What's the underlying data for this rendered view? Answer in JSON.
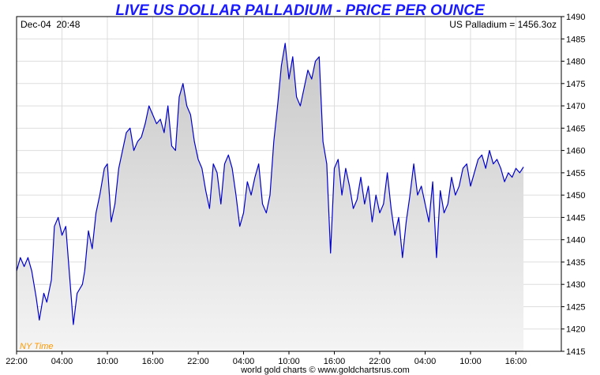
{
  "chart_data": {
    "type": "area",
    "title": "LIVE US DOLLAR PALLADIUM - PRICE PER OUNCE",
    "date_time": "Dec-04  20:48",
    "current_price_label": "US Palladium = 1456.3oz",
    "timezone_label": "NY Time",
    "footer": "world gold charts © www.goldchartsrus.com",
    "ylim": [
      1415,
      1490
    ],
    "y_axis_side": "right",
    "y_ticks": [
      1415,
      1420,
      1425,
      1430,
      1435,
      1440,
      1445,
      1450,
      1455,
      1460,
      1465,
      1470,
      1475,
      1480,
      1485,
      1490
    ],
    "x_ticks": [
      "22:00",
      "04:00",
      "10:00",
      "16:00",
      "22:00",
      "04:00",
      "10:00",
      "16:00",
      "22:00",
      "04:00",
      "10:00",
      "16:00"
    ],
    "x_tick_hours": [
      0,
      6,
      12,
      18,
      24,
      30,
      36,
      42,
      48,
      54,
      60,
      66
    ],
    "xlim_hours": [
      0,
      72
    ],
    "grid": true,
    "colors": {
      "line": "#0000cc",
      "fill_top": "#c8c8c8",
      "fill_bottom": "#f4f4f4",
      "grid": "#dddddd",
      "title": "#1a1aff",
      "timezone": "#ff9900"
    },
    "series": [
      {
        "values_hourly_approx": [
          [
            0,
            1433
          ],
          [
            0.5,
            1436
          ],
          [
            1,
            1434
          ],
          [
            1.5,
            1436
          ],
          [
            2,
            1433
          ],
          [
            2.6,
            1427
          ],
          [
            3,
            1422
          ],
          [
            3.6,
            1428
          ],
          [
            4,
            1426
          ],
          [
            4.6,
            1431
          ],
          [
            5,
            1443
          ],
          [
            5.5,
            1445
          ],
          [
            6,
            1441
          ],
          [
            6.5,
            1443
          ],
          [
            7,
            1432
          ],
          [
            7.5,
            1421
          ],
          [
            8,
            1428
          ],
          [
            8.7,
            1430
          ],
          [
            9,
            1433
          ],
          [
            9.5,
            1442
          ],
          [
            10,
            1438
          ],
          [
            10.5,
            1446
          ],
          [
            11,
            1450
          ],
          [
            11.6,
            1456
          ],
          [
            12,
            1457
          ],
          [
            12.5,
            1444
          ],
          [
            13,
            1448
          ],
          [
            13.5,
            1456
          ],
          [
            14,
            1460
          ],
          [
            14.5,
            1464
          ],
          [
            15,
            1465
          ],
          [
            15.5,
            1460
          ],
          [
            16,
            1462
          ],
          [
            16.5,
            1463
          ],
          [
            17,
            1466
          ],
          [
            17.5,
            1470
          ],
          [
            18,
            1468
          ],
          [
            18.5,
            1466
          ],
          [
            19,
            1467
          ],
          [
            19.5,
            1464
          ],
          [
            20,
            1470
          ],
          [
            20.5,
            1461
          ],
          [
            21,
            1460
          ],
          [
            21.5,
            1472
          ],
          [
            22,
            1475
          ],
          [
            22.5,
            1470
          ],
          [
            23,
            1468
          ],
          [
            23.5,
            1462
          ],
          [
            24,
            1458
          ],
          [
            24.5,
            1456
          ],
          [
            25,
            1451
          ],
          [
            25.5,
            1447
          ],
          [
            26,
            1457
          ],
          [
            26.5,
            1455
          ],
          [
            27,
            1448
          ],
          [
            27.5,
            1457
          ],
          [
            28,
            1459
          ],
          [
            28.5,
            1456
          ],
          [
            29,
            1450
          ],
          [
            29.5,
            1443
          ],
          [
            30,
            1446
          ],
          [
            30.5,
            1453
          ],
          [
            31,
            1450
          ],
          [
            31.5,
            1454
          ],
          [
            32,
            1457
          ],
          [
            32.5,
            1448
          ],
          [
            33,
            1446
          ],
          [
            33.5,
            1450
          ],
          [
            34,
            1462
          ],
          [
            34.5,
            1470
          ],
          [
            35,
            1479
          ],
          [
            35.5,
            1484
          ],
          [
            36,
            1476
          ],
          [
            36.5,
            1481
          ],
          [
            37,
            1472
          ],
          [
            37.5,
            1470
          ],
          [
            38,
            1474
          ],
          [
            38.5,
            1478
          ],
          [
            39,
            1476
          ],
          [
            39.5,
            1480
          ],
          [
            40,
            1481
          ],
          [
            40.5,
            1462
          ],
          [
            41,
            1457
          ],
          [
            41.5,
            1437
          ],
          [
            42,
            1456
          ],
          [
            42.5,
            1458
          ],
          [
            43,
            1450
          ],
          [
            43.5,
            1456
          ],
          [
            44,
            1452
          ],
          [
            44.5,
            1447
          ],
          [
            45,
            1449
          ],
          [
            45.5,
            1454
          ],
          [
            46,
            1448
          ],
          [
            46.5,
            1452
          ],
          [
            47,
            1444
          ],
          [
            47.5,
            1450
          ],
          [
            48,
            1446
          ],
          [
            48.5,
            1448
          ],
          [
            49,
            1455
          ],
          [
            49.5,
            1447
          ],
          [
            50,
            1441
          ],
          [
            50.5,
            1445
          ],
          [
            51,
            1436
          ],
          [
            51.5,
            1444
          ],
          [
            52,
            1450
          ],
          [
            52.5,
            1457
          ],
          [
            53,
            1450
          ],
          [
            53.5,
            1452
          ],
          [
            54,
            1448
          ],
          [
            54.5,
            1444
          ],
          [
            55,
            1453
          ],
          [
            55.5,
            1436
          ],
          [
            56,
            1451
          ],
          [
            56.5,
            1446
          ],
          [
            57,
            1448
          ],
          [
            57.5,
            1454
          ],
          [
            58,
            1450
          ],
          [
            58.5,
            1452
          ],
          [
            59,
            1456
          ],
          [
            59.5,
            1457
          ],
          [
            60,
            1452
          ],
          [
            60.5,
            1455
          ],
          [
            61,
            1458
          ],
          [
            61.5,
            1459
          ],
          [
            62,
            1456
          ],
          [
            62.5,
            1460
          ],
          [
            63,
            1457
          ],
          [
            63.5,
            1458
          ],
          [
            64,
            1456
          ],
          [
            64.5,
            1453
          ],
          [
            65,
            1455
          ],
          [
            65.5,
            1454
          ],
          [
            66,
            1456
          ],
          [
            66.5,
            1455
          ],
          [
            67,
            1456.3
          ]
        ]
      }
    ]
  }
}
